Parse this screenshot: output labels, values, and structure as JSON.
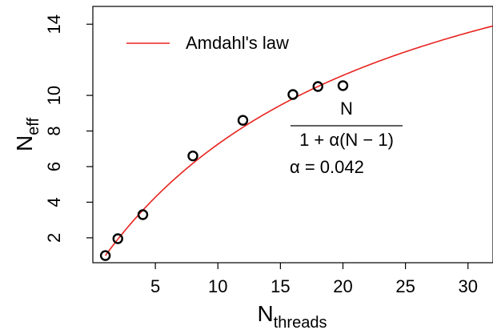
{
  "chart_data": {
    "type": "scatter",
    "xlabel": "N",
    "xlabel_sub": "threads",
    "ylabel": "N",
    "ylabel_sub": "eff",
    "xlim": [
      0,
      32
    ],
    "ylim": [
      0.6,
      15
    ],
    "x_ticks": [
      5,
      10,
      15,
      20,
      25,
      30
    ],
    "y_ticks": [
      2,
      4,
      6,
      8,
      10,
      14
    ],
    "grid": false,
    "points": {
      "x": [
        1,
        2,
        4,
        8,
        12,
        16,
        18,
        20
      ],
      "y": [
        1.0,
        1.95,
        3.3,
        6.6,
        8.6,
        10.05,
        10.5,
        10.55
      ]
    },
    "model": {
      "name": "Amdahl's law",
      "color": "#e8231e",
      "alpha": 0.042,
      "x_range": [
        1,
        32
      ]
    },
    "legend": {
      "position": "top-left",
      "label": "Amdahl's law"
    },
    "annotation": {
      "numerator": "N",
      "denominator": "1 + α(N − 1)",
      "alpha_text": "α = 0.042"
    }
  }
}
